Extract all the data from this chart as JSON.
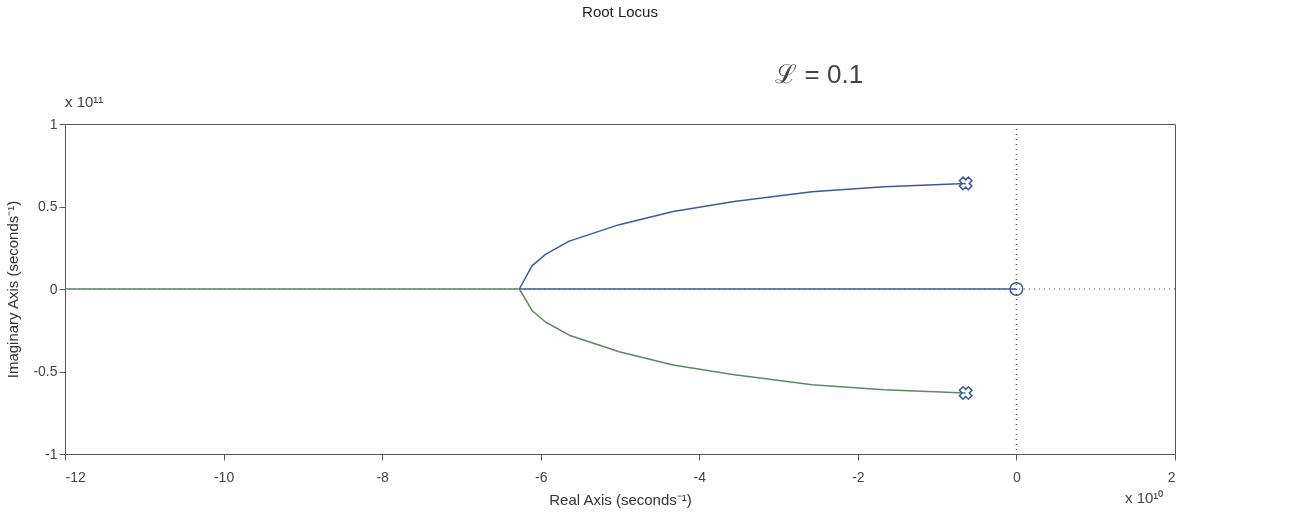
{
  "chart_data": {
    "type": "line",
    "title": "Root Locus",
    "xlabel": "Real Axis (seconds⁻¹)",
    "ylabel": "Imaginary Axis (seconds⁻¹)",
    "xlim": [
      -12,
      2
    ],
    "xticks": [
      -12,
      -10,
      -8,
      -6,
      -4,
      -2,
      0,
      2
    ],
    "ylim": [
      -1,
      1
    ],
    "yticks": [
      -1,
      -0.5,
      0,
      0.5,
      1
    ],
    "grid": false,
    "legend": false,
    "series": [
      {
        "line_style": "solid",
        "color": "#3b5a9a",
        "marker": "none",
        "x": [
          -0.64,
          -1.67,
          -2.58,
          -3.56,
          -4.33,
          -5.01,
          -5.64,
          -5.94,
          -6.11,
          -6.27
        ],
        "values": [
          0.64,
          0.62,
          0.59,
          0.53,
          0.47,
          0.39,
          0.29,
          0.21,
          0.14,
          0
        ]
      },
      {
        "line_style": "solid",
        "color": "#3b5a9a",
        "marker": "none",
        "x": [
          -6.27,
          0
        ],
        "values": [
          0,
          0
        ]
      },
      {
        "line_style": "solid",
        "color": "#5a8a5e",
        "marker": "none",
        "x": [
          -0.64,
          -1.67,
          -2.58,
          -3.56,
          -4.33,
          -5.01,
          -5.64,
          -5.94,
          -6.11,
          -6.27
        ],
        "values": [
          -0.63,
          -0.61,
          -0.58,
          -0.52,
          -0.46,
          -0.38,
          -0.28,
          -0.2,
          -0.13,
          0
        ]
      },
      {
        "line_style": "solid",
        "color": "#5a8a5e",
        "marker": "none",
        "x": [
          -12,
          -6.27
        ],
        "values": [
          0,
          0
        ]
      },
      {
        "type": "scatter",
        "color": "#3b5a9a",
        "marker": "cross",
        "x": [
          -0.64,
          -0.64
        ],
        "values": [
          0.64,
          -0.63
        ]
      },
      {
        "type": "scatter",
        "color": "#3b5a9a",
        "marker": "circle",
        "x": [
          0
        ],
        "values": [
          0
        ]
      }
    ],
    "ref_lines": [
      {
        "axis": "x",
        "value": 0,
        "line_style": "dotted",
        "color": "#555555"
      },
      {
        "axis": "y",
        "value": 0,
        "line_style": "dotted",
        "color": "#888888"
      }
    ],
    "annotations": [
      "x 10¹¹",
      "x 10¹⁰",
      "ℒ = 0.1"
    ]
  }
}
